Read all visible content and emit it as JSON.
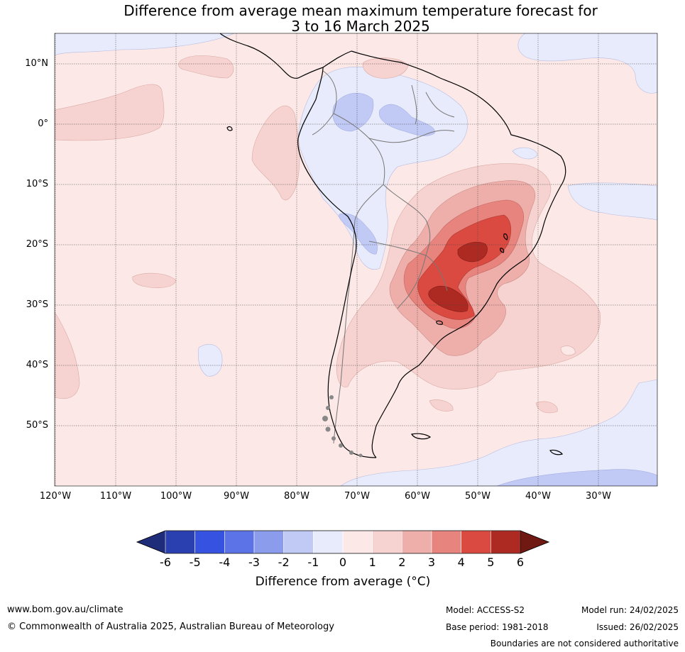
{
  "title": {
    "line1": "Difference from average mean maximum temperature forecast for",
    "line2": "3 to 16 March 2025"
  },
  "lat_labels": [
    "10°N",
    "0°",
    "10°S",
    "20°S",
    "30°S",
    "40°S",
    "50°S"
  ],
  "lon_labels": [
    "120°W",
    "110°W",
    "100°W",
    "90°W",
    "80°W",
    "70°W",
    "60°W",
    "50°W",
    "40°W",
    "30°W"
  ],
  "colorbar": {
    "ticks": [
      "-6",
      "-5",
      "-4",
      "-3",
      "-2",
      "-1",
      "0",
      "1",
      "2",
      "3",
      "4",
      "5",
      "6"
    ],
    "colors": [
      "#1f2c7a",
      "#2a3fb0",
      "#3553e0",
      "#5b73e6",
      "#8b9cec",
      "#c1c9f5",
      "#e8ebfb",
      "#fce9e7",
      "#f6d3d0",
      "#eeafaa",
      "#e7847e",
      "#db4a40",
      "#ad2a22",
      "#701913"
    ],
    "label": "Difference from average (°C)"
  },
  "colors": {
    "background_field": "#fce9e7",
    "cool_light": "#e8ebfb",
    "warm_peak": "#ad2a22"
  },
  "footer": {
    "website": "www.bom.gov.au/climate",
    "copyright": "© Commonwealth of Australia 2025, Australian Bureau of Meteorology",
    "model": "Model: ACCESS-S2",
    "base_period": "Base period: 1981-2018",
    "model_run": "Model run: 24/02/2025",
    "issued": "Issued: 26/02/2025",
    "disclaimer": "Boundaries are not considered authoritative"
  }
}
